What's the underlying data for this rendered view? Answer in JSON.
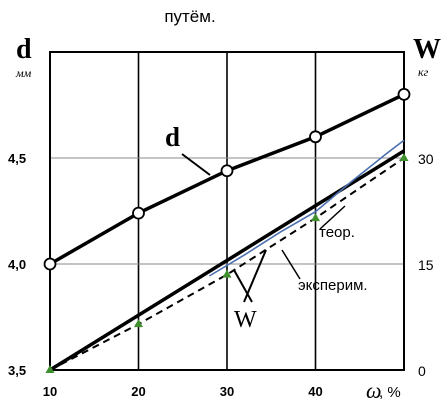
{
  "caption_fragment": "путём.",
  "chart_data": {
    "type": "line",
    "x": [
      10,
      20,
      30,
      40,
      50
    ],
    "xlabel_symbol": "ω",
    "xlabel_unit": ", %",
    "x_ticks": [
      "10",
      "20",
      "30",
      "40"
    ],
    "xlim": [
      10,
      50
    ],
    "left_axis": {
      "symbol": "d",
      "unit": "мм",
      "ylim": [
        3.5,
        5.0
      ],
      "ticks": [
        3.5,
        4.0,
        4.5
      ],
      "tick_labels": [
        "3,5",
        "4,0",
        "4,5"
      ]
    },
    "right_axis": {
      "symbol": "W",
      "unit": "кг",
      "ylim": [
        0,
        45
      ],
      "ticks": [
        0,
        15,
        30
      ],
      "tick_labels": [
        "0",
        "15",
        "30"
      ]
    },
    "grid": true,
    "series": [
      {
        "name": "d",
        "axis": "left",
        "style": "solid-bold-circles",
        "x": [
          10,
          20,
          30,
          40,
          50
        ],
        "y": [
          4.0,
          4.24,
          4.44,
          4.6,
          4.8
        ]
      },
      {
        "name": "W",
        "axis": "right",
        "style": "solid-bold",
        "x": [
          10,
          50
        ],
        "y": [
          0,
          31
        ]
      },
      {
        "name": "W",
        "axis": "right",
        "style": "thin-blue",
        "color": "#4a6fb0",
        "x": [
          28,
          32,
          36,
          40,
          44,
          48,
          50
        ],
        "y": [
          13.3,
          16.3,
          19.5,
          22.4,
          26.6,
          30.6,
          32.5
        ]
      },
      {
        "name": "W",
        "axis": "right",
        "style": "dashed-triangles",
        "marker_color": "#3f8f2f",
        "x": [
          10,
          20,
          30,
          40,
          50
        ],
        "y": [
          0,
          6.5,
          13.5,
          21.5,
          30
        ]
      }
    ],
    "annotations": {
      "d_label": "d",
      "w_label": "W",
      "teor_label": "теор.",
      "experim_label": "эксперим."
    }
  }
}
